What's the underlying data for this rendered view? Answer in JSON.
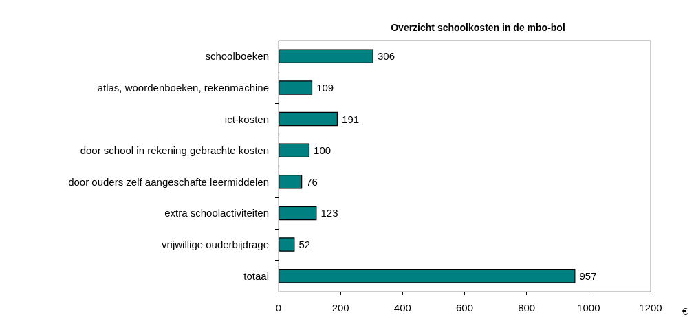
{
  "chart_data": {
    "type": "bar",
    "orientation": "horizontal",
    "title": "Overzicht schoolkosten in de mbo-bol",
    "xlabel": "€",
    "categories": [
      "schoolboeken",
      "atlas, woordenboeken, rekenmachine",
      "ict-kosten",
      "door school in rekening gebrachte kosten",
      "door ouders zelf aangeschafte leermiddelen",
      "extra schoolactiviteiten",
      "vrijwillige ouderbijdrage",
      "totaal"
    ],
    "values": [
      306,
      109,
      191,
      100,
      76,
      123,
      52,
      957
    ],
    "color": "#008080",
    "xlim": [
      0,
      1200
    ],
    "xticks": [
      0,
      200,
      400,
      600,
      800,
      1000,
      1200
    ],
    "grid": false,
    "data_labels": true
  }
}
